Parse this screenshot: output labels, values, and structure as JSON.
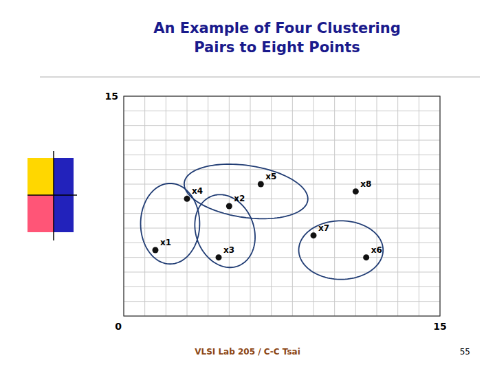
{
  "chart_data": {
    "type": "scatter",
    "title": [
      "An Example of Four Clustering",
      "Pairs to Eight Points"
    ],
    "point_labels": [
      "x1",
      "x2",
      "x3",
      "x4",
      "x5",
      "x6",
      "x7",
      "x8"
    ],
    "x": [
      1.5,
      5.0,
      4.5,
      3.0,
      6.5,
      11.5,
      9.0,
      11.0
    ],
    "values": [
      4.5,
      7.5,
      4.0,
      8.0,
      9.0,
      4.0,
      5.5,
      8.5
    ],
    "clusters": [
      {
        "cx": 2.2,
        "cy": 6.3,
        "width": 2.8,
        "height": 5.5,
        "angle": 0
      },
      {
        "cx": 5.8,
        "cy": 8.5,
        "width": 6.0,
        "height": 3.5,
        "angle": -15
      },
      {
        "cx": 4.8,
        "cy": 5.8,
        "width": 2.8,
        "height": 5.0,
        "angle": 8
      },
      {
        "cx": 10.3,
        "cy": 4.5,
        "width": 4.0,
        "height": 4.0,
        "angle": 0
      }
    ],
    "xlim": [
      0,
      15
    ],
    "ylim": [
      0,
      15
    ],
    "xticks": [
      0,
      1,
      2,
      3,
      4,
      5,
      6,
      7,
      8,
      9,
      10,
      11,
      12,
      13,
      14,
      15
    ],
    "yticks": [
      0,
      1,
      2,
      3,
      4,
      5,
      6,
      7,
      8,
      9,
      10,
      11,
      12,
      13,
      14,
      15
    ],
    "grid": true,
    "tick_labels": false,
    "annotations": [
      "15",
      "0",
      "15"
    ],
    "footer": "VLSI Lab 205 / C-C Tsai",
    "page_number": "55"
  }
}
